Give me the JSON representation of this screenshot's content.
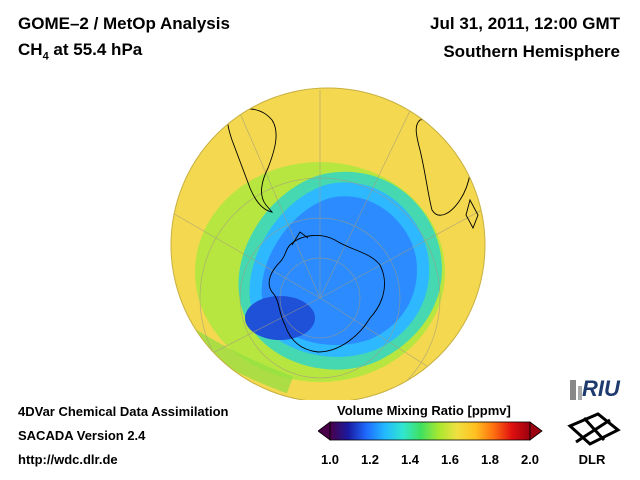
{
  "header": {
    "title_line1": "GOME–2 / MetOp Analysis",
    "species": "CH",
    "species_sub": "4",
    "level": " at 55.4 hPa",
    "datetime": "Jul 31, 2011, 12:00 GMT",
    "region": "Southern Hemisphere"
  },
  "footer": {
    "line1": "4DVar Chemical Data Assimilation",
    "line2": "SACADA Version 2.4",
    "url": "http://wdc.dlr.de"
  },
  "colorbar": {
    "title": "Volume Mixing Ratio [ppmv]",
    "min": 1.0,
    "max": 2.0,
    "ticks": [
      "1.0",
      "1.2",
      "1.4",
      "1.6",
      "1.8",
      "2.0"
    ],
    "colors": [
      "#4a0048",
      "#1a1aa0",
      "#1e6bff",
      "#22b8ff",
      "#30e6d0",
      "#40e060",
      "#a8e830",
      "#f0e040",
      "#ffc020",
      "#ff7010",
      "#e01010",
      "#9a0010"
    ]
  },
  "logos": {
    "riu": "RIU",
    "dlr": "DLR"
  },
  "colors": {
    "ocean_high": "#f5d44a",
    "mid": "#9ee038",
    "low": "#2aa8ff",
    "lowest": "#1e50e6"
  }
}
